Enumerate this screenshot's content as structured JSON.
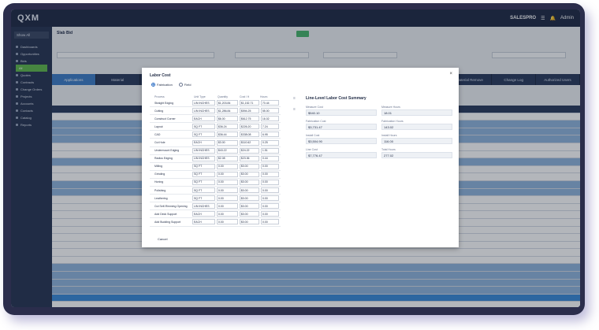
{
  "app": {
    "logo": "QXM",
    "brand": "SALESPRO",
    "user": "Admin"
  },
  "sidebar": {
    "selector": "Show All",
    "items": [
      "Dashboards",
      "Opportunities",
      "Bids",
      "All",
      "Quotes",
      "Contracts",
      "Change Orders",
      "Projects",
      "Accounts",
      "Contacts",
      "Catalog",
      "Reports"
    ]
  },
  "breadcrumb": "Slab Bid",
  "tabs": [
    "Applications",
    "Material",
    "",
    "",
    "",
    "",
    "",
    "",
    "",
    "Material Remove",
    "Change Log",
    "Authorized Users"
  ],
  "modal": {
    "title": "Labor Cost",
    "radio_options": [
      "Fabrication",
      "Field"
    ],
    "columns": [
      "Process",
      "Unit Type",
      "Quantity",
      "Cost / ft",
      "Hours"
    ],
    "rows": [
      [
        "Straight Edging",
        "LIN INCHES",
        "$1,203.84",
        "$1,152.71",
        "70.44"
      ],
      [
        "Cutting",
        "LIN INCHES",
        "$1,286.84",
        "$594.25",
        "55.00"
      ],
      [
        "Construct Corner",
        "EACH",
        "$6.00",
        "$612.75",
        "16.02"
      ],
      [
        "Layout",
        "SQ FT",
        "$36.24",
        "$226.20",
        "7.24"
      ],
      [
        "CAD",
        "SQ FT",
        "$36.44",
        "$338.08",
        "6.95"
      ],
      [
        "Cut Hole",
        "EACH",
        "$3.00",
        "$110.62",
        "0.25"
      ],
      [
        "Undermount Edging",
        "LIN INCHES",
        "$43.22",
        "$24.22",
        "1.51"
      ],
      [
        "Radius Edging",
        "LIN INCHES",
        "$2.08",
        "$23.36",
        "0.44"
      ],
      [
        "Milling",
        "SQ FT",
        "0.00",
        "$0.00",
        "0.00"
      ],
      [
        "Grinding",
        "SQ FT",
        "0.00",
        "$0.00",
        "0.00"
      ],
      [
        "Honing",
        "SQ FT",
        "0.00",
        "$0.00",
        "0.00"
      ],
      [
        "Polishing",
        "SQ FT",
        "0.00",
        "$0.00",
        "0.00"
      ],
      [
        "Leathering",
        "SQ FT",
        "0.00",
        "$0.00",
        "0.00"
      ],
      [
        "Cut Self-Rimming Opening",
        "LIN INCHES",
        "0.00",
        "$0.00",
        "0.00"
      ],
      [
        "Add Deck Support",
        "EACH",
        "0.00",
        "$0.00",
        "0.00"
      ],
      [
        "Add Budding Support",
        "EACH",
        "0.00",
        "$0.00",
        "0.00"
      ]
    ],
    "cancel_label": "Cancel",
    "summary": {
      "title": "Line-Level Labor Cost Summary",
      "fields": [
        {
          "label": "Measure Cost",
          "value": "$540.10"
        },
        {
          "label": "Measure Hours",
          "value": "18.01"
        },
        {
          "label": "Fabrication Cost",
          "value": "$3,731.47"
        },
        {
          "label": "Fabrication Hours",
          "value": "143.02"
        },
        {
          "label": "Install Cost",
          "value": "$3,504.90"
        },
        {
          "label": "Install Hours",
          "value": "116.00"
        },
        {
          "label": "Line Cost",
          "value": "$7,776.47"
        },
        {
          "label": "Total Hours",
          "value": "277.02"
        }
      ]
    }
  }
}
